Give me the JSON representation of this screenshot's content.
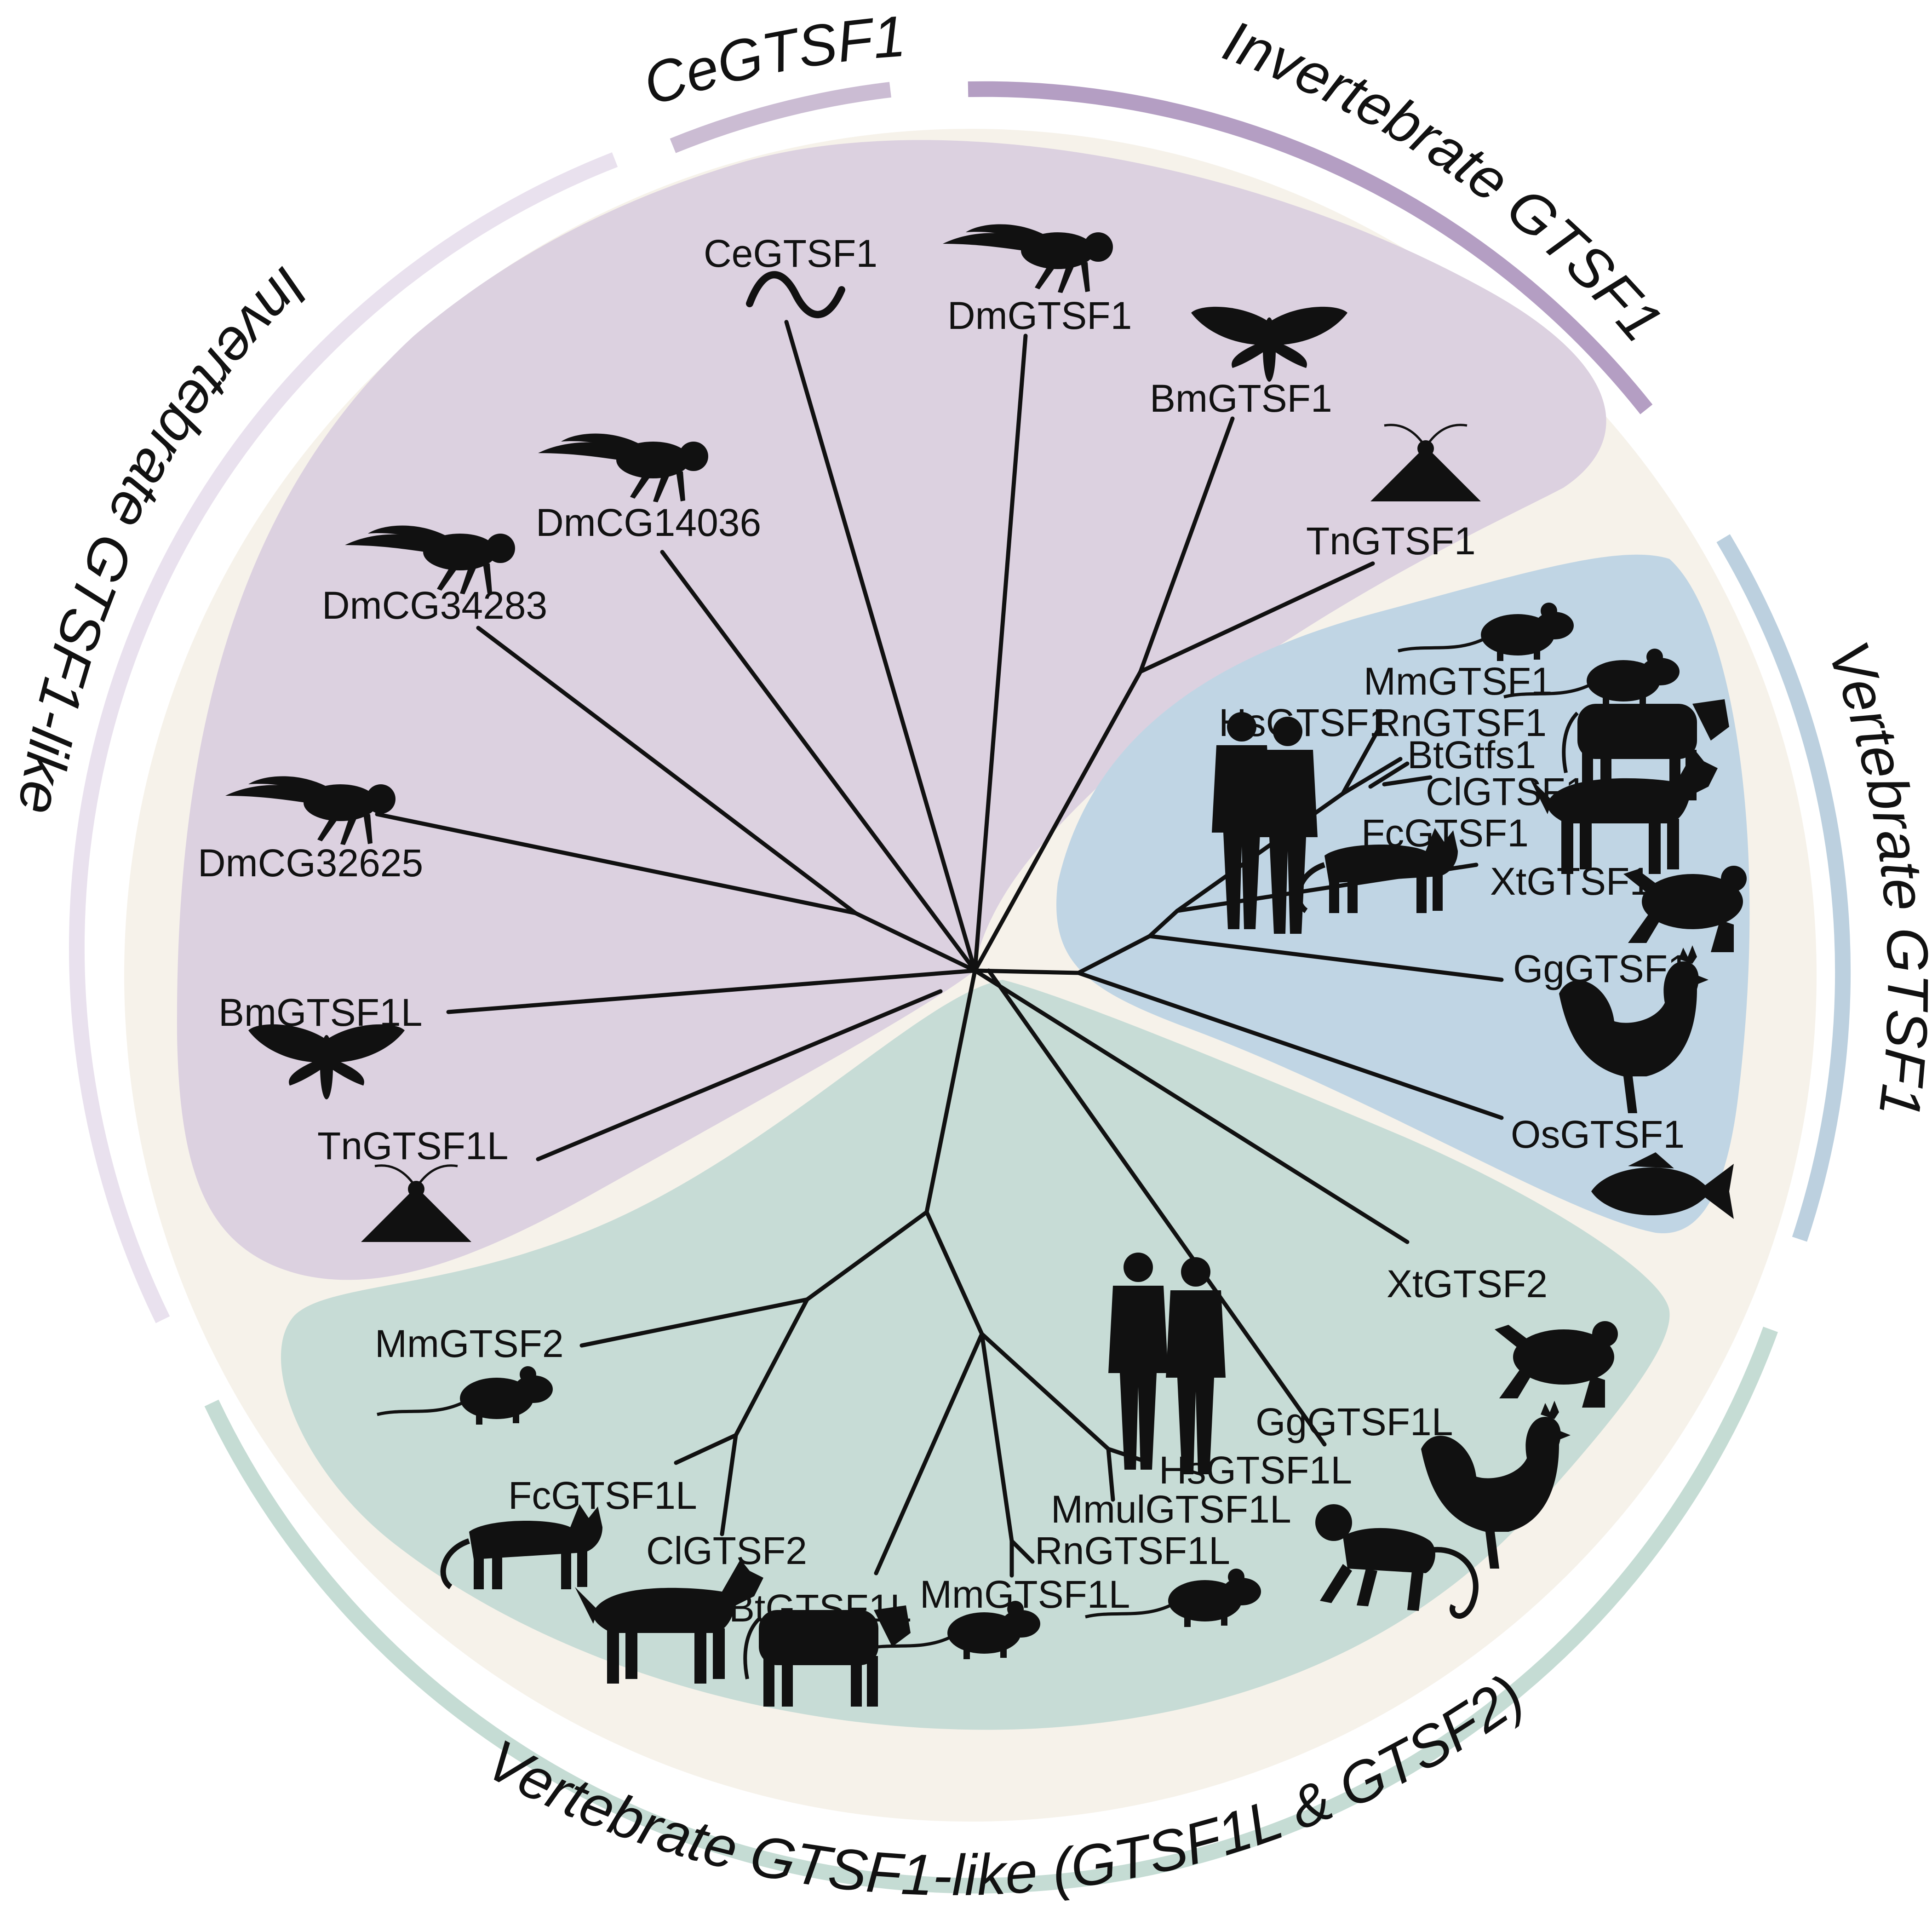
{
  "colors": {
    "outer_ring": "#f6f2ea",
    "invertebrate_fill": "#dcd1e0",
    "vertebrate_gtsf1_fill": "#c0d5e4",
    "vertebrate_like_fill": "#c7dcd6",
    "arc_invertebrate_like": "#e9e1ee",
    "arc_cegtsf1": "#cbbcd3",
    "arc_invertebrate_gtsf1": "#b49ec3",
    "arc_vertebrate_gtsf1": "#bcd0df",
    "arc_vertebrate_like": "#c5dcd4",
    "branch": "#111111"
  },
  "clades": {
    "invertebrate_gtsf1_like": "Invertebrate GTSF1-like",
    "cegtsf1": "CeGTSF1",
    "invertebrate_gtsf1": "Invertebrate GTSF1",
    "vertebrate_gtsf1": "Vertebrate GTSF1",
    "vertebrate_gtsf1_like": "Vertebrate GTSF1-like (GTSF1L & GTSF2)"
  },
  "leaves": {
    "cegtsf1": "CeGTSF1",
    "dmgtsf1": "DmGTSF1",
    "bmgtsf1": "BmGTSF1",
    "tngtsf1": "TnGTSF1",
    "dmcg14036": "DmCG14036",
    "dmcg34283": "DmCG34283",
    "dmcg32625": "DmCG32625",
    "bmgtsf1l": "BmGTSF1L",
    "tngtsf1l": "TnGTSF1L",
    "mmgtsf1": "MmGTSF1",
    "hsgtsf1": "HsGTSF1",
    "rngtsf1": "RnGTSF1",
    "btgtfs1": "BtGtfs1",
    "clgtsf1": "ClGTSF1",
    "fcgtsf1": "FcGTSF1",
    "xtgtsf1": "XtGTSF1",
    "gggtsf1": "GgGTSF1",
    "osgtsf1": "OsGTSF1",
    "xtgtsf2": "XtGTSF2",
    "mmgtsf2": "MmGTSF2",
    "gggtsf1l": "GgGTSF1L",
    "hsgtsf1l": "HsGTSF1L",
    "mmulgtsf1l": "MmulGTSF1L",
    "rngtsf1l": "RnGTSF1L",
    "mmgtsf1l": "MmGTSF1L",
    "btgtsf1l": "BtGTSF1L",
    "clgtsf2": "ClGTSF2",
    "fcgtsf1l": "FcGTSF1L"
  },
  "icons": [
    "worm-icon",
    "fly-icon",
    "moth-icon",
    "noctuid-moth-icon",
    "mouse-icon",
    "rat-icon",
    "cow-icon",
    "dog-icon",
    "human-icon",
    "cat-icon",
    "frog-icon",
    "rooster-icon",
    "fish-icon",
    "monkey-icon"
  ]
}
